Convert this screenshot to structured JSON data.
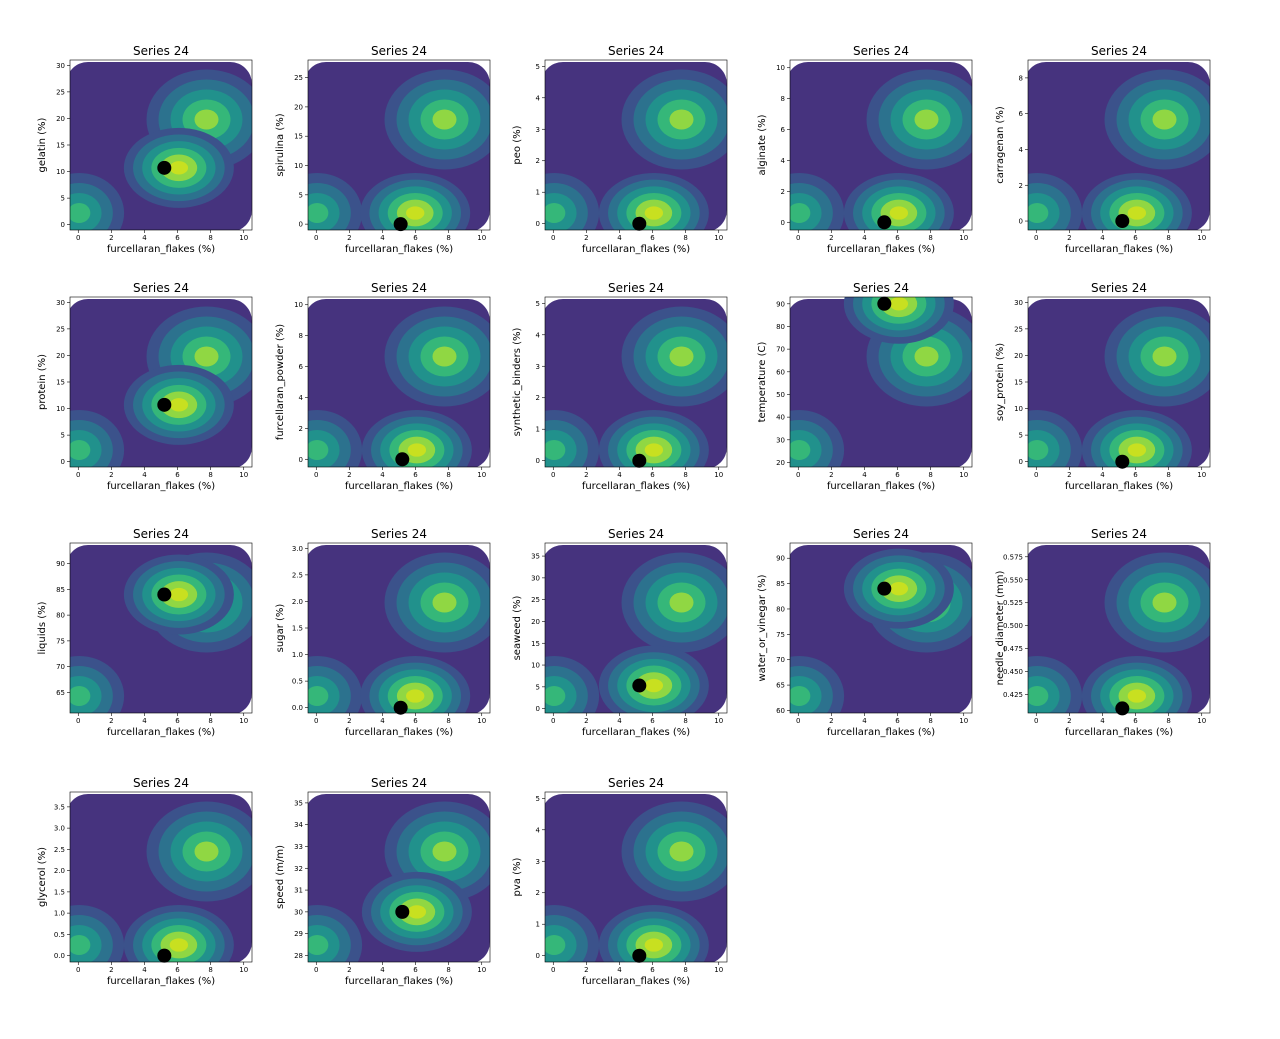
{
  "chart_data": [
    {
      "type": "contour",
      "title": "Series 24",
      "x_label": "furcellaran_flakes (%)",
      "y_label": "gelatin (%)",
      "xlim": [
        -0.5,
        10.5
      ],
      "xticks": [
        0,
        2,
        4,
        6,
        8,
        10
      ],
      "ylim": [
        -1,
        31
      ],
      "yticks": [
        0,
        5,
        10,
        15,
        20,
        25,
        30
      ],
      "point": {
        "x": 5.2,
        "y": 10.7
      }
    },
    {
      "type": "contour",
      "title": "Series 24",
      "x_label": "furcellaran_flakes (%)",
      "y_label": "spirulina (%)",
      "xlim": [
        -0.5,
        10.5
      ],
      "xticks": [
        0,
        2,
        4,
        6,
        8,
        10
      ],
      "ylim": [
        -1,
        28
      ],
      "yticks": [
        0,
        5,
        10,
        15,
        20,
        25
      ],
      "point": {
        "x": 5.1,
        "y": 0
      }
    },
    {
      "type": "contour",
      "title": "Series 24",
      "x_label": "furcellaran_flakes (%)",
      "y_label": "peo (%)",
      "xlim": [
        -0.5,
        10.5
      ],
      "xticks": [
        0,
        2,
        4,
        6,
        8,
        10
      ],
      "ylim": [
        -0.2,
        5.2
      ],
      "yticks": [
        0,
        1,
        2,
        3,
        4,
        5
      ],
      "point": {
        "x": 5.2,
        "y": 0
      }
    },
    {
      "type": "contour",
      "title": "Series 24",
      "x_label": "furcellaran_flakes (%)",
      "y_label": "alginate (%)",
      "xlim": [
        -0.5,
        10.5
      ],
      "xticks": [
        0,
        2,
        4,
        6,
        8,
        10
      ],
      "ylim": [
        -0.5,
        10.5
      ],
      "yticks": [
        0,
        2,
        4,
        6,
        8,
        10
      ],
      "point": {
        "x": 5.2,
        "y": 0
      }
    },
    {
      "type": "contour",
      "title": "Series 24",
      "x_label": "furcellaran_flakes (%)",
      "y_label": "carragenan (%)",
      "xlim": [
        -0.5,
        10.5
      ],
      "xticks": [
        0,
        2,
        4,
        6,
        8,
        10
      ],
      "ylim": [
        -0.5,
        9
      ],
      "yticks": [
        0,
        2,
        4,
        6,
        8
      ],
      "point": {
        "x": 5.2,
        "y": 0
      }
    },
    {
      "type": "contour",
      "title": "Series 24",
      "x_label": "furcellaran_flakes (%)",
      "y_label": "protein (%)",
      "xlim": [
        -0.5,
        10.5
      ],
      "xticks": [
        0,
        2,
        4,
        6,
        8,
        10
      ],
      "ylim": [
        -1,
        31
      ],
      "yticks": [
        0,
        5,
        10,
        15,
        20,
        25,
        30
      ],
      "point": {
        "x": 5.2,
        "y": 10.7
      }
    },
    {
      "type": "contour",
      "title": "Series 24",
      "x_label": "furcellaran_flakes (%)",
      "y_label": "furcellaran_powder (%)",
      "xlim": [
        -0.5,
        10.5
      ],
      "xticks": [
        0,
        2,
        4,
        6,
        8,
        10
      ],
      "ylim": [
        -0.5,
        10.5
      ],
      "yticks": [
        0,
        2,
        4,
        6,
        8,
        10
      ],
      "point": {
        "x": 5.2,
        "y": 0
      }
    },
    {
      "type": "contour",
      "title": "Series 24",
      "x_label": "furcellaran_flakes (%)",
      "y_label": "synthetic_binders (%)",
      "xlim": [
        -0.5,
        10.5
      ],
      "xticks": [
        0,
        2,
        4,
        6,
        8,
        10
      ],
      "ylim": [
        -0.2,
        5.2
      ],
      "yticks": [
        0,
        1,
        2,
        3,
        4,
        5
      ],
      "point": {
        "x": 5.2,
        "y": 0
      }
    },
    {
      "type": "contour",
      "title": "Series 24",
      "x_label": "furcellaran_flakes (%)",
      "y_label": "temperature (C)",
      "xlim": [
        -0.5,
        10.5
      ],
      "xticks": [
        0,
        2,
        4,
        6,
        8,
        10
      ],
      "ylim": [
        18,
        93
      ],
      "yticks": [
        20,
        30,
        40,
        50,
        60,
        70,
        80,
        90
      ],
      "point": {
        "x": 5.2,
        "y": 90
      }
    },
    {
      "type": "contour",
      "title": "Series 24",
      "x_label": "furcellaran_flakes (%)",
      "y_label": "soy_protein (%)",
      "xlim": [
        -0.5,
        10.5
      ],
      "xticks": [
        0,
        2,
        4,
        6,
        8,
        10
      ],
      "ylim": [
        -1,
        31
      ],
      "yticks": [
        0,
        5,
        10,
        15,
        20,
        25,
        30
      ],
      "point": {
        "x": 5.2,
        "y": 0
      }
    },
    {
      "type": "contour",
      "title": "Series 24",
      "x_label": "furcellaran_flakes (%)",
      "y_label": "liquids (%)",
      "xlim": [
        -0.5,
        10.5
      ],
      "xticks": [
        0,
        2,
        4,
        6,
        8,
        10
      ],
      "ylim": [
        61,
        94
      ],
      "yticks": [
        65,
        70,
        75,
        80,
        85,
        90
      ],
      "point": {
        "x": 5.2,
        "y": 84
      }
    },
    {
      "type": "contour",
      "title": "Series 24",
      "x_label": "furcellaran_flakes (%)",
      "y_label": "sugar (%)",
      "xlim": [
        -0.5,
        10.5
      ],
      "xticks": [
        0,
        2,
        4,
        6,
        8,
        10
      ],
      "ylim": [
        -0.1,
        3.1
      ],
      "yticks": [
        {
          "value": 0,
          "label": "0.0"
        },
        0.5,
        {
          "value": 1,
          "label": "1.0"
        },
        1.5,
        {
          "value": 2,
          "label": "2.0"
        },
        2.5,
        {
          "value": 3,
          "label": "3.0"
        }
      ],
      "point": {
        "x": 5.1,
        "y": 0
      }
    },
    {
      "type": "contour",
      "title": "Series 24",
      "x_label": "furcellaran_flakes (%)",
      "y_label": "seaweed (%)",
      "xlim": [
        -0.5,
        10.5
      ],
      "xticks": [
        0,
        2,
        4,
        6,
        8,
        10
      ],
      "ylim": [
        -1,
        38
      ],
      "yticks": [
        0,
        5,
        10,
        15,
        20,
        25,
        30,
        35
      ],
      "point": {
        "x": 5.2,
        "y": 5.3
      }
    },
    {
      "type": "contour",
      "title": "Series 24",
      "x_label": "furcellaran_flakes (%)",
      "y_label": "water_or_vinegar (%)",
      "xlim": [
        -0.5,
        10.5
      ],
      "xticks": [
        0,
        2,
        4,
        6,
        8,
        10
      ],
      "ylim": [
        59.5,
        93
      ],
      "yticks": [
        60,
        65,
        70,
        75,
        80,
        85,
        90
      ],
      "point": {
        "x": 5.2,
        "y": 84
      }
    },
    {
      "type": "contour",
      "title": "Series 24",
      "x_label": "furcellaran_flakes (%)",
      "y_label": "needle_diameter (mm)",
      "xlim": [
        -0.5,
        10.5
      ],
      "xticks": [
        0,
        2,
        4,
        6,
        8,
        10
      ],
      "ylim": [
        0.405,
        0.59
      ],
      "yticks": [
        0.425,
        {
          "value": 0.45,
          "label": "0.450"
        },
        0.475,
        {
          "value": 0.5,
          "label": "0.500"
        },
        0.525,
        {
          "value": 0.55,
          "label": "0.550"
        },
        0.575
      ],
      "point": {
        "x": 5.2,
        "y": 0.41
      }
    },
    {
      "type": "contour",
      "title": "Series 24",
      "x_label": "furcellaran_flakes (%)",
      "y_label": "glycerol (%)",
      "xlim": [
        -0.5,
        10.5
      ],
      "xticks": [
        0,
        2,
        4,
        6,
        8,
        10
      ],
      "ylim": [
        -0.15,
        3.85
      ],
      "yticks": [
        {
          "value": 0,
          "label": "0.0"
        },
        0.5,
        {
          "value": 1,
          "label": "1.0"
        },
        1.5,
        {
          "value": 2,
          "label": "2.0"
        },
        2.5,
        {
          "value": 3,
          "label": "3.0"
        },
        3.5
      ],
      "point": {
        "x": 5.2,
        "y": 0
      }
    },
    {
      "type": "contour",
      "title": "Series 24",
      "x_label": "furcellaran_flakes (%)",
      "y_label": "speed (m/m)",
      "xlim": [
        -0.5,
        10.5
      ],
      "xticks": [
        0,
        2,
        4,
        6,
        8,
        10
      ],
      "ylim": [
        27.7,
        35.5
      ],
      "yticks": [
        28,
        29,
        30,
        31,
        32,
        33,
        34,
        35
      ],
      "point": {
        "x": 5.2,
        "y": 30
      }
    },
    {
      "type": "contour",
      "title": "Series 24",
      "x_label": "furcellaran_flakes (%)",
      "y_label": "pva (%)",
      "xlim": [
        -0.5,
        10.5
      ],
      "xticks": [
        0,
        2,
        4,
        6,
        8,
        10
      ],
      "ylim": [
        -0.2,
        5.2
      ],
      "yticks": [
        0,
        1,
        2,
        3,
        4,
        5
      ],
      "point": {
        "x": 5.2,
        "y": 0
      }
    }
  ]
}
